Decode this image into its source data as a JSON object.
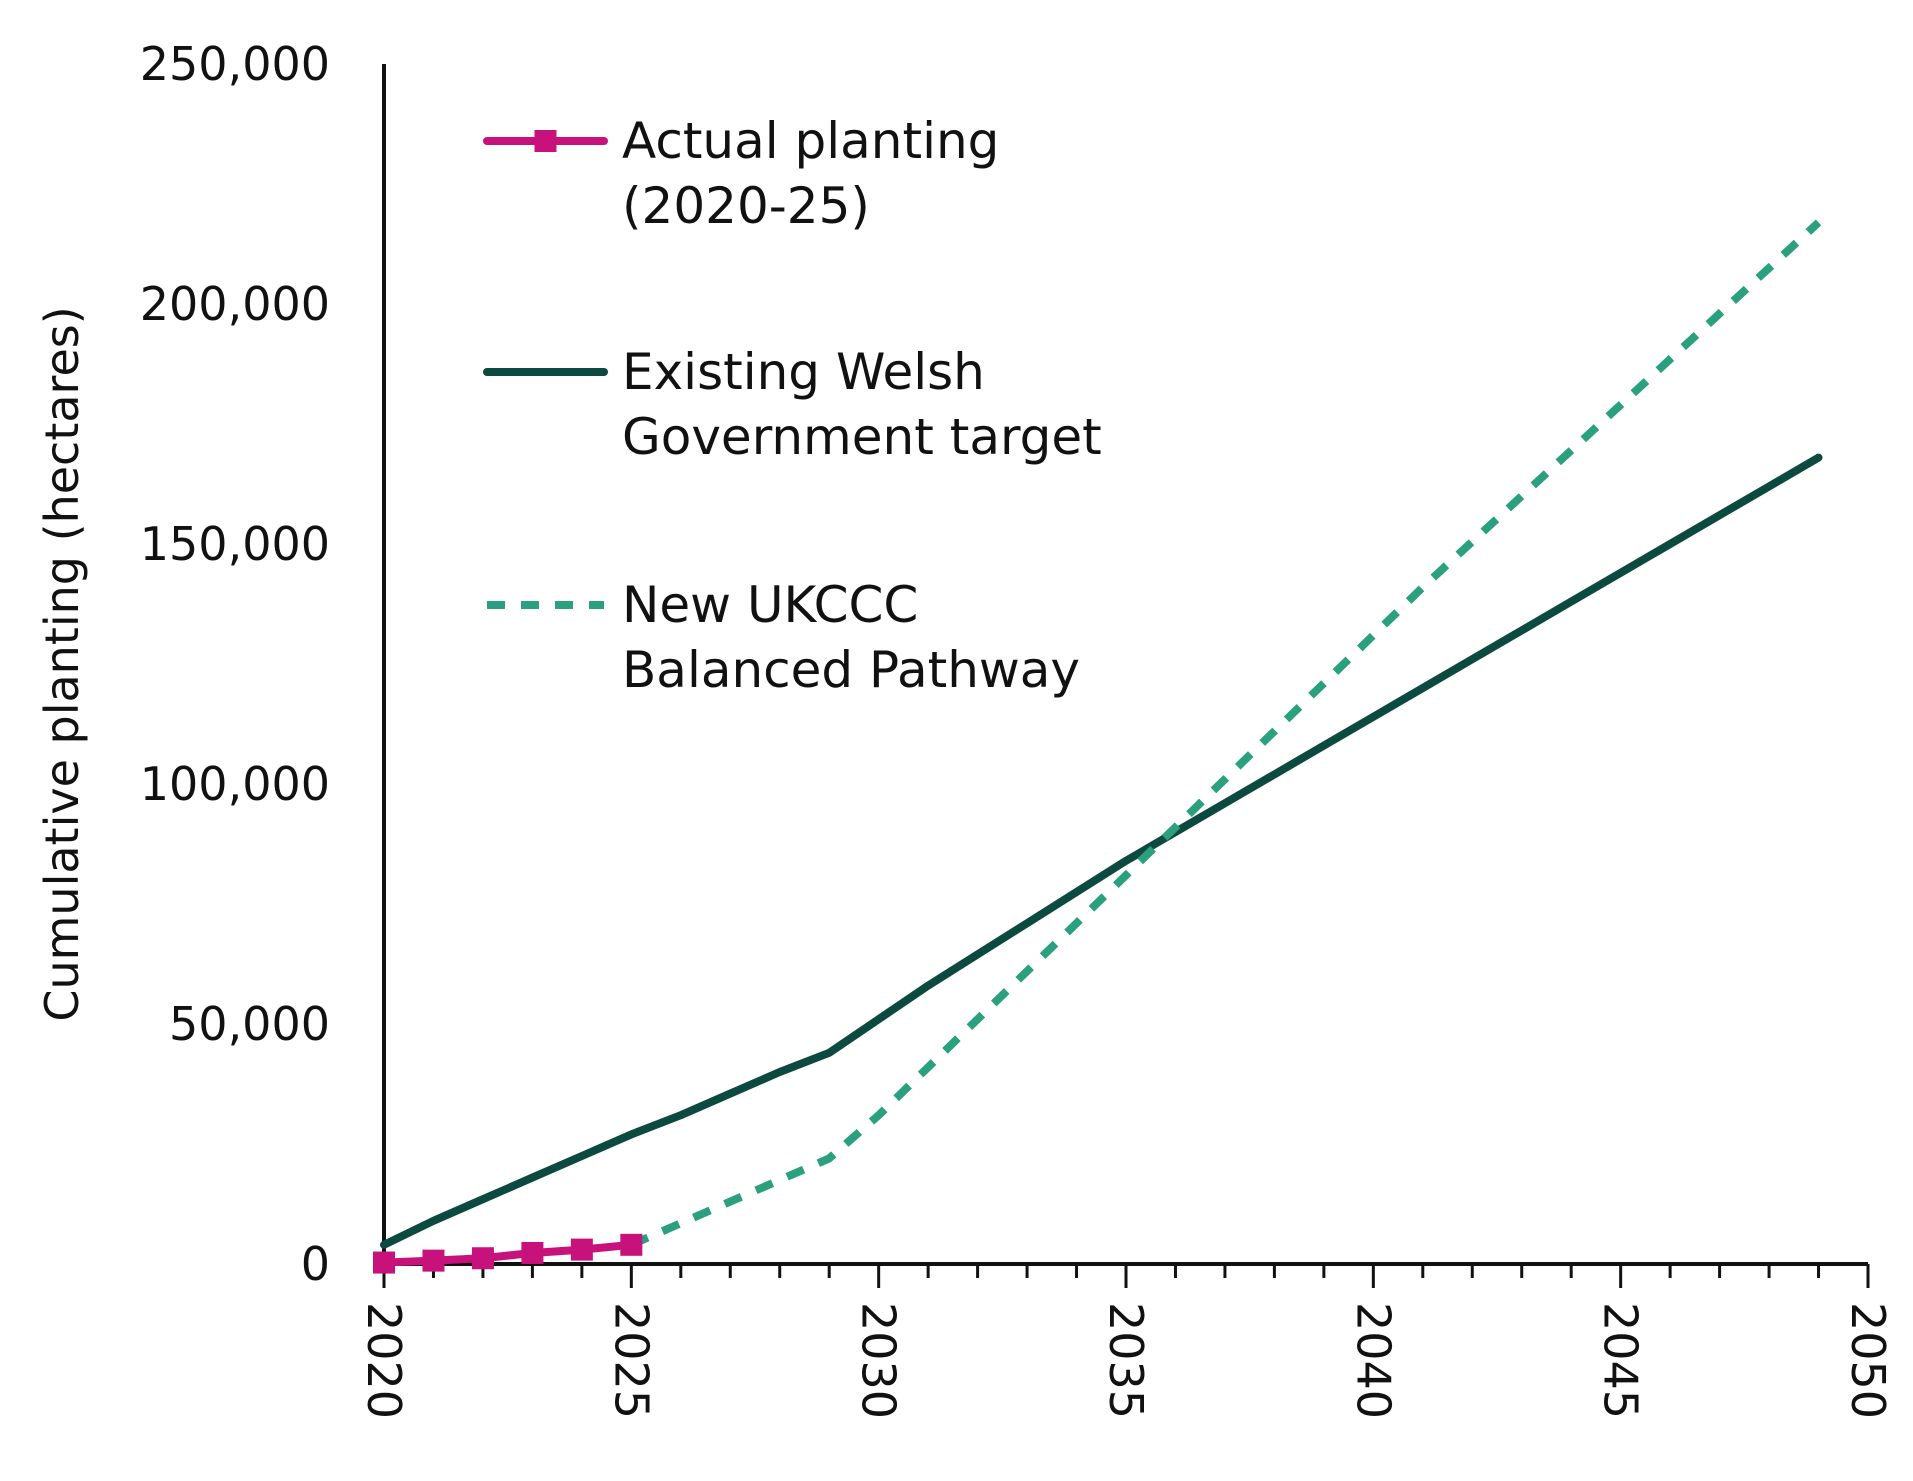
{
  "chart_data": {
    "type": "line",
    "title": "",
    "xlabel": "",
    "ylabel": "Cumulative planting (hectares)",
    "xlim": [
      2020,
      2050
    ],
    "ylim": [
      0,
      250000
    ],
    "x_ticks": [
      "2020",
      "2025",
      "2030",
      "2035",
      "2040",
      "2045",
      "2050"
    ],
    "y_ticks": [
      "0",
      "50,000",
      "100,000",
      "150,000",
      "200,000",
      "250,000"
    ],
    "grid": false,
    "legend_position": "upper-left",
    "series": [
      {
        "name": "Actual planting (2020-25)",
        "legend_lines": [
          "Actual planting",
          "(2020-25)"
        ],
        "color": "#c8127b",
        "style": "solid-square-markers",
        "x": [
          2020,
          2021,
          2022,
          2023,
          2024,
          2025
        ],
        "y": [
          300,
          700,
          1200,
          2300,
          3000,
          4000
        ]
      },
      {
        "name": "Existing Welsh Government target",
        "legend_lines": [
          "Existing Welsh",
          "Government target"
        ],
        "color": "#0c4a40",
        "style": "solid",
        "x": [
          2020,
          2021,
          2022,
          2023,
          2024,
          2025,
          2026,
          2027,
          2028,
          2029,
          2030,
          2031,
          2032,
          2033,
          2034,
          2035,
          2036,
          2037,
          2038,
          2039,
          2040,
          2041,
          2042,
          2043,
          2044,
          2045,
          2046,
          2047,
          2048,
          2049
        ],
        "y": [
          4000,
          9000,
          13500,
          18000,
          22500,
          27000,
          31000,
          35500,
          40000,
          44000,
          51000,
          58000,
          64500,
          71000,
          77500,
          84000,
          90000,
          96000,
          102000,
          108000,
          114000,
          120000,
          126000,
          132000,
          138000,
          144000,
          150000,
          156000,
          162000,
          168000
        ]
      },
      {
        "name": "New UKCCC Balanced Pathway",
        "legend_lines": [
          "New UKCCC",
          "Balanced Pathway"
        ],
        "color": "#2aa07f",
        "style": "dashed",
        "x": [
          2025,
          2026,
          2027,
          2028,
          2029,
          2030,
          2031,
          2032,
          2033,
          2034,
          2035,
          2036,
          2037,
          2038,
          2039,
          2040,
          2041,
          2042,
          2043,
          2044,
          2045,
          2046,
          2047,
          2048,
          2049
        ],
        "y": [
          4000,
          8500,
          13000,
          17500,
          22000,
          31000,
          41000,
          51000,
          61000,
          71000,
          81000,
          91000,
          101000,
          111000,
          121000,
          131000,
          141000,
          150500,
          160000,
          169500,
          179000,
          188500,
          198000,
          207500,
          217000
        ]
      }
    ]
  }
}
